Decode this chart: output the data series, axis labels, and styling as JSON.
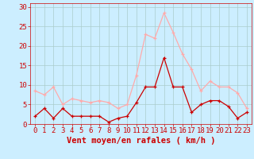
{
  "hours": [
    0,
    1,
    2,
    3,
    4,
    5,
    6,
    7,
    8,
    9,
    10,
    11,
    12,
    13,
    14,
    15,
    16,
    17,
    18,
    19,
    20,
    21,
    22,
    23
  ],
  "wind_avg": [
    2,
    4,
    1.5,
    4,
    2,
    2,
    2,
    2,
    0.5,
    1.5,
    2,
    5.5,
    9.5,
    9.5,
    17,
    9.5,
    9.5,
    3,
    5,
    6,
    6,
    4.5,
    1.5,
    3
  ],
  "wind_gust": [
    8.5,
    7.5,
    9.5,
    5,
    6.5,
    6,
    5.5,
    6,
    5.5,
    4,
    5,
    12.5,
    23,
    22,
    28.5,
    23.5,
    18,
    14,
    8.5,
    11,
    9.5,
    9.5,
    8,
    4
  ],
  "bg_color": "#cceeff",
  "grid_color": "#aacccc",
  "line_avg_color": "#cc0000",
  "line_gust_color": "#ffaaaa",
  "xlabel": "Vent moyen/en rafales ( km/h )",
  "xlabel_color": "#cc0000",
  "tick_color": "#cc0000",
  "ylim": [
    0,
    31
  ],
  "yticks": [
    0,
    5,
    10,
    15,
    20,
    25,
    30
  ],
  "tick_fontsize": 6.5,
  "xlabel_fontsize": 7.5
}
